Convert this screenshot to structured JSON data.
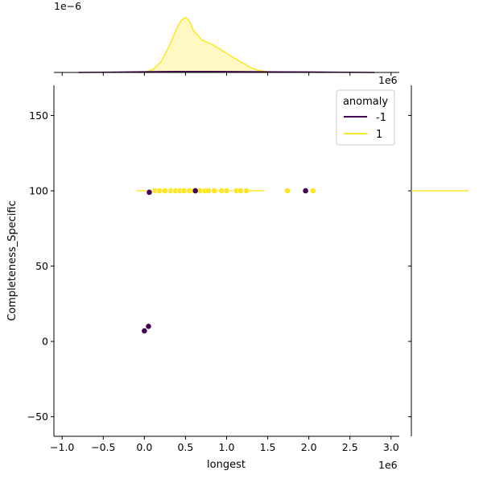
{
  "chart_data": {
    "type": "scatter",
    "title": "",
    "xlabel": "longest",
    "ylabel": "Completeness_Specific",
    "xlim": [
      -1100000,
      3100000
    ],
    "ylim": [
      -63,
      170
    ],
    "x_ticks": [
      -1.0,
      -0.5,
      0.0,
      0.5,
      1.0,
      1.5,
      2.0,
      2.5,
      3.0
    ],
    "x_tick_labels": [
      "−1.0",
      "−0.5",
      "0.0",
      "0.5",
      "1.0",
      "1.5",
      "2.0",
      "2.5",
      "3.0"
    ],
    "x_offset_text": "1e6",
    "y_ticks": [
      -50,
      0,
      50,
      100,
      150
    ],
    "y_tick_labels": [
      "−50",
      "0",
      "50",
      "100",
      "150"
    ],
    "top_marginal_offset_text": "1e−6",
    "top_marginal_x_offset_text": "1e6",
    "legend": {
      "title": "anomaly",
      "placement": "upper right",
      "entries": [
        {
          "label": "-1",
          "color": "#440154"
        },
        {
          "label": "1",
          "color": "#fde725"
        }
      ]
    },
    "series": [
      {
        "name": "-1",
        "color": "#440154",
        "points": [
          {
            "x": 0,
            "y": 7
          },
          {
            "x": 50000,
            "y": 10
          },
          {
            "x": 60000,
            "y": 99
          },
          {
            "x": 620000,
            "y": 100
          },
          {
            "x": 1960000,
            "y": 100
          }
        ]
      },
      {
        "name": "1",
        "color": "#fde725",
        "points": [
          {
            "x": 130000,
            "y": 100
          },
          {
            "x": 180000,
            "y": 100
          },
          {
            "x": 250000,
            "y": 100
          },
          {
            "x": 320000,
            "y": 100
          },
          {
            "x": 380000,
            "y": 100
          },
          {
            "x": 430000,
            "y": 100
          },
          {
            "x": 480000,
            "y": 100
          },
          {
            "x": 550000,
            "y": 100
          },
          {
            "x": 600000,
            "y": 100
          },
          {
            "x": 680000,
            "y": 100
          },
          {
            "x": 740000,
            "y": 100
          },
          {
            "x": 780000,
            "y": 100
          },
          {
            "x": 850000,
            "y": 100
          },
          {
            "x": 940000,
            "y": 100
          },
          {
            "x": 1000000,
            "y": 100
          },
          {
            "x": 1120000,
            "y": 100
          },
          {
            "x": 1170000,
            "y": 100
          },
          {
            "x": 1240000,
            "y": 100
          },
          {
            "x": 1740000,
            "y": 100
          },
          {
            "x": 2050000,
            "y": 100
          }
        ]
      }
    ],
    "marginal_x_kde": {
      "series": [
        {
          "name": "1",
          "color": "#fde725",
          "x": [
            -100000,
            0,
            100000,
            200000,
            300000,
            400000,
            450000,
            500000,
            550000,
            600000,
            700000,
            800000,
            900000,
            1000000,
            1100000,
            1200000,
            1300000,
            1400000,
            1500000,
            1700000,
            2000000,
            2200000
          ],
          "density": [
            0,
            0.004,
            0.05,
            0.18,
            0.45,
            0.78,
            0.9,
            0.95,
            0.88,
            0.72,
            0.56,
            0.5,
            0.42,
            0.33,
            0.24,
            0.16,
            0.08,
            0.03,
            0.012,
            0.006,
            0.004,
            0
          ]
        },
        {
          "name": "-1",
          "color": "#440154",
          "x": [
            -800000,
            -400000,
            0,
            400000,
            800000,
            1200000,
            1600000,
            2000000,
            2400000,
            2800000
          ],
          "density": [
            0,
            0.006,
            0.012,
            0.018,
            0.018,
            0.014,
            0.01,
            0.008,
            0.004,
            0
          ]
        }
      ]
    },
    "marginal_y_kde": {
      "series": [
        {
          "name": "1",
          "color": "#fde725",
          "y": 100,
          "width": 0.95
        },
        {
          "name": "-1",
          "color": "#440154",
          "y": 100,
          "width": 0.0
        }
      ]
    }
  }
}
